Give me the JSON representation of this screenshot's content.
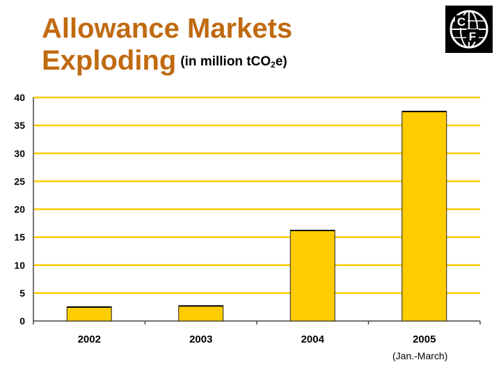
{
  "title": {
    "main_line1": "Allowance Markets",
    "main_line2": "Exploding",
    "unit_prefix": "(in million tCO",
    "unit_sub": "2",
    "unit_suffix": "e)"
  },
  "logo": {
    "letters": [
      "C",
      "F"
    ]
  },
  "footnote": "(Jan.-March)",
  "colors": {
    "title": "#c06a10",
    "bar": "#ffcc00",
    "bar_edge": "#222222",
    "grid": "#ffcc00"
  },
  "chart_data": {
    "type": "bar",
    "categories": [
      "2002",
      "2003",
      "2004",
      "2005"
    ],
    "values": [
      2.5,
      2.7,
      16.2,
      37.5
    ],
    "ylim": [
      0,
      40
    ],
    "yticks": [
      0,
      5,
      10,
      15,
      20,
      25,
      30,
      35,
      40
    ],
    "grid": true,
    "title": "",
    "xlabel": "",
    "ylabel": ""
  }
}
